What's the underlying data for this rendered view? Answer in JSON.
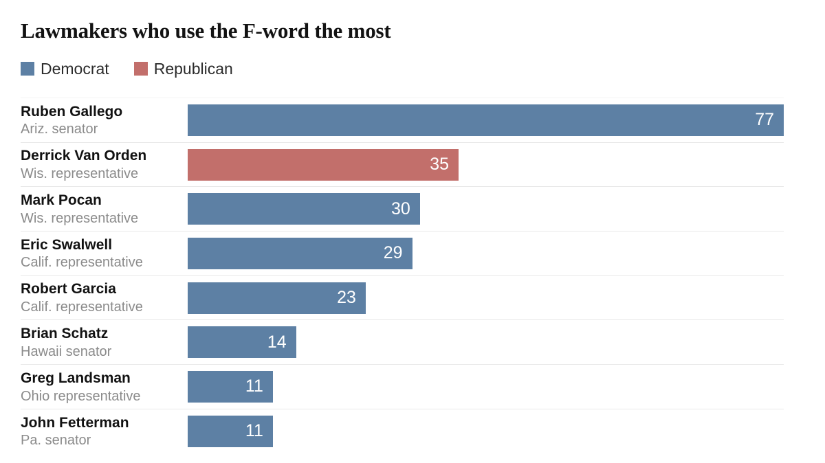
{
  "title": "Lawmakers who use the F-word the most",
  "colors": {
    "democrat": "#5d80a4",
    "republican": "#c26f6b",
    "separator": "#e9e9e9",
    "name_text": "#121212",
    "role_text": "#8b8b8b",
    "value_text": "#ffffff"
  },
  "legend": [
    {
      "label": "Democrat",
      "color": "#5d80a4"
    },
    {
      "label": "Republican",
      "color": "#c26f6b"
    }
  ],
  "rows": [
    {
      "name": "Ruben Gallego",
      "role": "Ariz. senator",
      "value": 77,
      "party": "Democrat"
    },
    {
      "name": "Derrick Van Orden",
      "role": "Wis. representative",
      "value": 35,
      "party": "Republican"
    },
    {
      "name": "Mark Pocan",
      "role": "Wis. representative",
      "value": 30,
      "party": "Democrat"
    },
    {
      "name": "Eric Swalwell",
      "role": "Calif. representative",
      "value": 29,
      "party": "Democrat"
    },
    {
      "name": "Robert Garcia",
      "role": "Calif. representative",
      "value": 23,
      "party": "Democrat"
    },
    {
      "name": "Brian Schatz",
      "role": "Hawaii senator",
      "value": 14,
      "party": "Democrat"
    },
    {
      "name": "Greg Landsman",
      "role": "Ohio representative",
      "value": 11,
      "party": "Democrat"
    },
    {
      "name": "John Fetterman",
      "role": "Pa. senator",
      "value": 11,
      "party": "Democrat"
    }
  ],
  "chart_data": {
    "type": "bar",
    "orientation": "horizontal",
    "title": "Lawmakers who use the F-word the most",
    "categories": [
      "Ruben Gallego (Ariz. senator)",
      "Derrick Van Orden (Wis. representative)",
      "Mark Pocan (Wis. representative)",
      "Eric Swalwell (Calif. representative)",
      "Robert Garcia (Calif. representative)",
      "Brian Schatz (Hawaii senator)",
      "Greg Landsman (Ohio representative)",
      "John Fetterman (Pa. senator)"
    ],
    "values": [
      77,
      35,
      30,
      29,
      23,
      14,
      11,
      11
    ],
    "series": [
      {
        "name": "Democrat",
        "values": [
          77,
          null,
          30,
          29,
          23,
          14,
          11,
          11
        ]
      },
      {
        "name": "Republican",
        "values": [
          null,
          35,
          null,
          null,
          null,
          null,
          null,
          null
        ]
      }
    ],
    "value_labels": [
      "77",
      "35",
      "30",
      "29",
      "23",
      "14",
      "11",
      "11"
    ],
    "xlabel": "",
    "ylabel": "",
    "xlim": [
      0,
      77
    ],
    "grid": false,
    "legend_position": "top-left",
    "bar_label_position": "inside-end"
  }
}
